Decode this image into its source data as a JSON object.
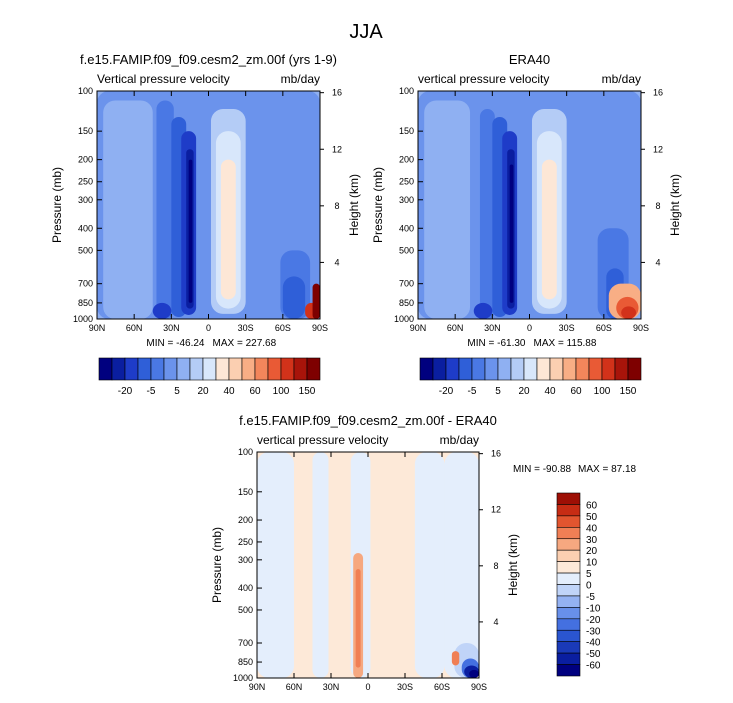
{
  "page": {
    "title": "JJA"
  },
  "colors": {
    "upper": [
      "#00007f",
      "#0a1ea0",
      "#1e3cc8",
      "#2f5fd8",
      "#4a78e4",
      "#6b93ec",
      "#8fb0f2",
      "#b4ccf6",
      "#d8e7fb",
      "#fde7d6",
      "#fbcfb1",
      "#f8ae85",
      "#f3865b",
      "#e95a35",
      "#d2321a",
      "#a8140a",
      "#7e0000"
    ],
    "diff": [
      "#00007f",
      "#0a1ea0",
      "#1a3ab8",
      "#2a55d0",
      "#4470e0",
      "#6890ea",
      "#94b2f2",
      "#c0d4f8",
      "#e4eefc",
      "#fde9d8",
      "#fbcfb1",
      "#f6a880",
      "#f07f55",
      "#e2552f",
      "#c72c14",
      "#9e0f05"
    ]
  },
  "chart_data": [
    {
      "type": "heatmap",
      "id": "model",
      "title": "f.e15.FAMIP.f09_f09.cesm2_zm.00f (yrs 1-9)",
      "subtitle_left": "Vertical pressure velocity",
      "subtitle_right": "mb/day",
      "xlabel": "",
      "ylabel": "Pressure (mb)",
      "ylabel_right": "Height (km)",
      "x_ticks": [
        "90N",
        "60N",
        "30N",
        "0",
        "30S",
        "60S",
        "90S"
      ],
      "x_values": [
        90,
        60,
        30,
        0,
        -30,
        -60,
        -90
      ],
      "y_ticks": [
        "100",
        "150",
        "200",
        "250",
        "300",
        "400",
        "500",
        "700",
        "850",
        "1000"
      ],
      "y_values": [
        100,
        150,
        200,
        250,
        300,
        400,
        500,
        700,
        850,
        1000
      ],
      "y_scale": "log",
      "right_ticks": [
        "16",
        "12",
        "8",
        "4"
      ],
      "right_values": [
        16,
        12,
        8,
        4
      ],
      "min_label": "MIN = -46.24",
      "max_label": "MAX = 227.68",
      "colorbar_labels": [
        "-20",
        "-5",
        "5",
        "20",
        "40",
        "60",
        "100",
        "150"
      ],
      "colorbar_levels": [
        -30,
        -25,
        -20,
        -15,
        -10,
        -5,
        0,
        5,
        10,
        20,
        30,
        40,
        50,
        60,
        80,
        100,
        150
      ]
    },
    {
      "type": "heatmap",
      "id": "obs",
      "title": "ERA40",
      "subtitle_left": "vertical pressure velocity",
      "subtitle_right": "mb/day",
      "xlabel": "",
      "ylabel": "Pressure (mb)",
      "ylabel_right": "Height (km)",
      "x_ticks": [
        "90N",
        "60N",
        "30N",
        "0",
        "30S",
        "60S",
        "90S"
      ],
      "x_values": [
        90,
        60,
        30,
        0,
        -30,
        -60,
        -90
      ],
      "y_ticks": [
        "100",
        "150",
        "200",
        "250",
        "300",
        "400",
        "500",
        "700",
        "850",
        "1000"
      ],
      "y_values": [
        100,
        150,
        200,
        250,
        300,
        400,
        500,
        700,
        850,
        1000
      ],
      "y_scale": "log",
      "right_ticks": [
        "16",
        "12",
        "8",
        "4"
      ],
      "right_values": [
        16,
        12,
        8,
        4
      ],
      "min_label": "MIN = -61.30",
      "max_label": "MAX = 115.88",
      "colorbar_labels": [
        "-20",
        "-5",
        "5",
        "20",
        "40",
        "60",
        "100",
        "150"
      ],
      "colorbar_levels": [
        -30,
        -25,
        -20,
        -15,
        -10,
        -5,
        0,
        5,
        10,
        20,
        30,
        40,
        50,
        60,
        80,
        100,
        150
      ]
    },
    {
      "type": "heatmap",
      "id": "diff",
      "title": "f.e15.FAMIP.f09_f09.cesm2_zm.00f - ERA40",
      "subtitle_left": "vertical pressure velocity",
      "subtitle_right": "mb/day",
      "xlabel": "",
      "ylabel": "Pressure (mb)",
      "ylabel_right": "Height (km)",
      "x_ticks": [
        "90N",
        "60N",
        "30N",
        "0",
        "30S",
        "60S",
        "90S"
      ],
      "x_values": [
        90,
        60,
        30,
        0,
        -30,
        -60,
        -90
      ],
      "y_ticks": [
        "100",
        "150",
        "200",
        "250",
        "300",
        "400",
        "500",
        "700",
        "850",
        "1000"
      ],
      "y_values": [
        100,
        150,
        200,
        250,
        300,
        400,
        500,
        700,
        850,
        1000
      ],
      "y_scale": "log",
      "right_ticks": [
        "16",
        "12",
        "8",
        "4"
      ],
      "right_values": [
        16,
        12,
        8,
        4
      ],
      "min_label": "MIN = -90.88",
      "max_label": "MAX =  87.18",
      "colorbar_labels": [
        "60",
        "50",
        "40",
        "30",
        "20",
        "10",
        "5",
        "0",
        "-5",
        "-10",
        "-20",
        "-30",
        "-40",
        "-50",
        "-60"
      ],
      "colorbar_levels": [
        60,
        50,
        40,
        30,
        20,
        10,
        5,
        0,
        -5,
        -10,
        -20,
        -30,
        -40,
        -50,
        -60
      ]
    }
  ]
}
